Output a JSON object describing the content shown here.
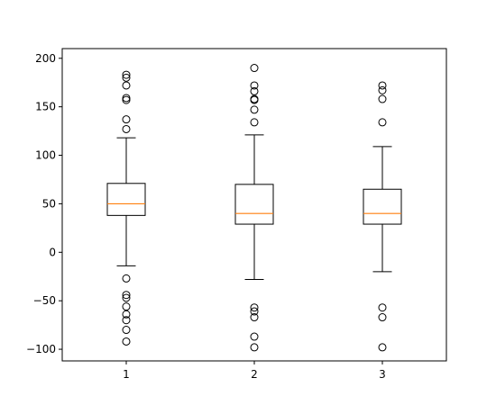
{
  "chart_data": {
    "type": "boxplot",
    "title": "",
    "xlabel": "",
    "ylabel": "",
    "categories": [
      "1",
      "2",
      "3"
    ],
    "ylim": [
      -112,
      210
    ],
    "y_ticks": [
      -100,
      -50,
      0,
      50,
      100,
      150,
      200
    ],
    "grid": false,
    "legend": "none",
    "colors": {
      "box": "#000000",
      "median": "#ff7f0e",
      "flier": "#000000",
      "axes": "#000000",
      "background": "#ffffff"
    },
    "boxes": [
      {
        "label": "1",
        "whisker_low": -14,
        "q1": 38,
        "median": 50,
        "q3": 71,
        "whisker_high": 118,
        "fliers": [
          183,
          180,
          172,
          159,
          157,
          137,
          127,
          -27,
          -44,
          -47,
          -56,
          -64,
          -70,
          -80,
          -92
        ]
      },
      {
        "label": "2",
        "whisker_low": -28,
        "q1": 29,
        "median": 40,
        "q3": 70,
        "whisker_high": 121,
        "fliers": [
          190,
          172,
          166,
          158,
          157,
          147,
          134,
          -57,
          -61,
          -67,
          -87,
          -98
        ]
      },
      {
        "label": "3",
        "whisker_low": -20,
        "q1": 29,
        "median": 40,
        "q3": 65,
        "whisker_high": 109,
        "fliers": [
          172,
          167,
          158,
          134,
          -57,
          -67,
          -98
        ]
      }
    ]
  }
}
